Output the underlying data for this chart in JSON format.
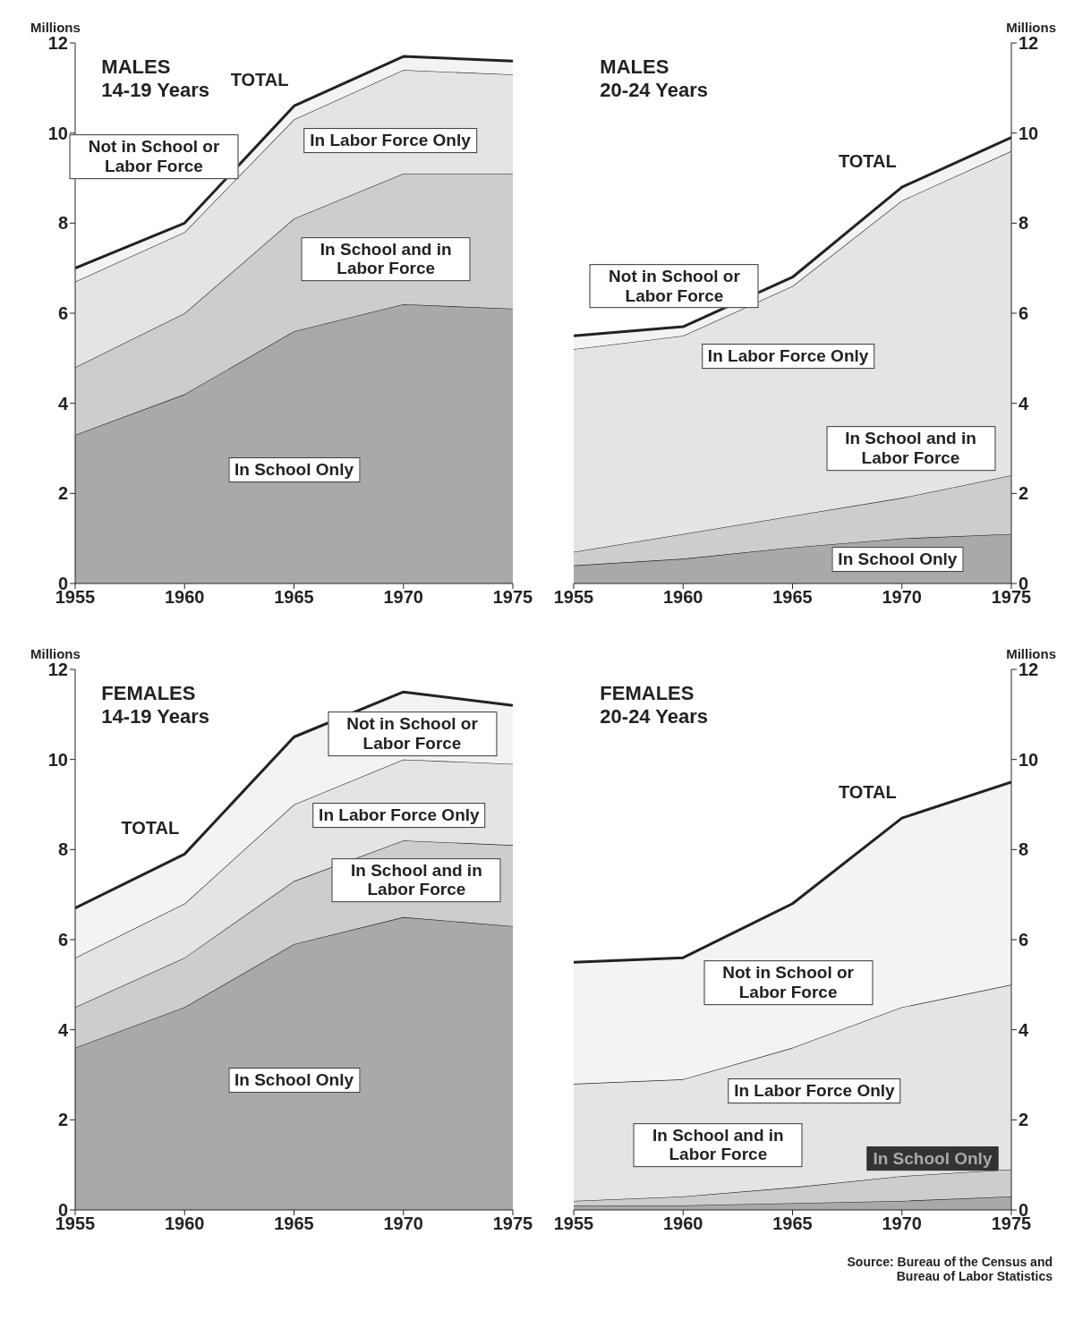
{
  "chart_data": [
    {
      "type": "area",
      "stacked": true,
      "title": "MALES\n14-19 Years",
      "ylabel": "Millions",
      "x": [
        1955,
        1960,
        1965,
        1970,
        1975
      ],
      "xlim": [
        1955,
        1975
      ],
      "xticks": [
        1955,
        1960,
        1965,
        1970,
        1975
      ],
      "ylim": [
        0,
        12
      ],
      "yticks": [
        0,
        2,
        4,
        6,
        8,
        10,
        12
      ],
      "series": [
        {
          "name": "In School Only",
          "color": "#a9a9a9",
          "values": [
            3.3,
            4.2,
            5.6,
            6.2,
            6.1
          ]
        },
        {
          "name": "In School and in Labor Force",
          "color": "#cdcdcd",
          "values": [
            1.5,
            1.8,
            2.5,
            2.9,
            3.0
          ]
        },
        {
          "name": "In Labor Force Only",
          "color": "#e4e4e4",
          "values": [
            1.9,
            1.8,
            2.2,
            2.3,
            2.2
          ]
        },
        {
          "name": "Not in School or Labor Force",
          "color": "#f3f3f3",
          "values": [
            0.3,
            0.2,
            0.3,
            0.3,
            0.3
          ]
        }
      ],
      "annotations": [
        {
          "text": "TOTAL",
          "x": 1965,
          "y": 10.6
        }
      ]
    },
    {
      "type": "area",
      "stacked": true,
      "title": "MALES\n20-24 Years",
      "ylabel": "Millions",
      "x": [
        1955,
        1960,
        1965,
        1970,
        1975
      ],
      "xlim": [
        1955,
        1975
      ],
      "xticks": [
        1955,
        1960,
        1965,
        1970,
        1975
      ],
      "ylim": [
        0,
        12
      ],
      "yticks": [
        0,
        2,
        4,
        6,
        8,
        10,
        12
      ],
      "series": [
        {
          "name": "In School Only",
          "color": "#a9a9a9",
          "values": [
            0.4,
            0.55,
            0.8,
            1.0,
            1.1
          ]
        },
        {
          "name": "In School and in Labor Force",
          "color": "#cdcdcd",
          "values": [
            0.3,
            0.55,
            0.7,
            0.9,
            1.3
          ]
        },
        {
          "name": "In Labor Force Only",
          "color": "#e4e4e4",
          "values": [
            4.5,
            4.4,
            5.1,
            6.6,
            7.2
          ]
        },
        {
          "name": "Not in School or Labor Force",
          "color": "#f3f3f3",
          "values": [
            0.3,
            0.2,
            0.2,
            0.3,
            0.3
          ]
        }
      ],
      "annotations": [
        {
          "text": "TOTAL",
          "x": 1970,
          "y": 8.8
        }
      ]
    },
    {
      "type": "area",
      "stacked": true,
      "title": "FEMALES\n14-19 Years",
      "ylabel": "Millions",
      "x": [
        1955,
        1960,
        1965,
        1970,
        1975
      ],
      "xlim": [
        1955,
        1975
      ],
      "xticks": [
        1955,
        1960,
        1965,
        1970,
        1975
      ],
      "ylim": [
        0,
        12
      ],
      "yticks": [
        0,
        2,
        4,
        6,
        8,
        10,
        12
      ],
      "series": [
        {
          "name": "In School Only",
          "color": "#a9a9a9",
          "values": [
            3.6,
            4.5,
            5.9,
            6.5,
            6.3
          ]
        },
        {
          "name": "In School and in Labor Force",
          "color": "#cdcdcd",
          "values": [
            0.9,
            1.1,
            1.4,
            1.7,
            1.8
          ]
        },
        {
          "name": "In Labor Force Only",
          "color": "#e4e4e4",
          "values": [
            1.1,
            1.2,
            1.7,
            1.8,
            1.8
          ]
        },
        {
          "name": "Not in School or Labor Force",
          "color": "#f3f3f3",
          "values": [
            1.1,
            1.1,
            1.5,
            1.5,
            1.3
          ]
        }
      ],
      "annotations": [
        {
          "text": "TOTAL",
          "x": 1960,
          "y": 7.9
        }
      ]
    },
    {
      "type": "area",
      "stacked": true,
      "title": "FEMALES\n20-24 Years",
      "ylabel": "Millions",
      "x": [
        1955,
        1960,
        1965,
        1970,
        1975
      ],
      "xlim": [
        1955,
        1975
      ],
      "xticks": [
        1955,
        1960,
        1965,
        1970,
        1975
      ],
      "ylim": [
        0,
        12
      ],
      "yticks": [
        0,
        2,
        4,
        6,
        8,
        10,
        12
      ],
      "series": [
        {
          "name": "In School Only",
          "color": "#a9a9a9",
          "values": [
            0.1,
            0.1,
            0.15,
            0.2,
            0.3
          ]
        },
        {
          "name": "In School and in Labor Force",
          "color": "#cdcdcd",
          "values": [
            0.1,
            0.2,
            0.35,
            0.55,
            0.6
          ]
        },
        {
          "name": "In Labor Force Only",
          "color": "#e4e4e4",
          "values": [
            2.6,
            2.6,
            3.1,
            3.75,
            4.1
          ]
        },
        {
          "name": "Not in School or Labor Force",
          "color": "#f3f3f3",
          "values": [
            2.7,
            2.7,
            3.2,
            4.2,
            4.5
          ]
        }
      ],
      "annotations": [
        {
          "text": "TOTAL",
          "x": 1970,
          "y": 8.7
        },
        "Source: Bureau of the Census and\nBureau of Labor Statistics"
      ]
    }
  ]
}
